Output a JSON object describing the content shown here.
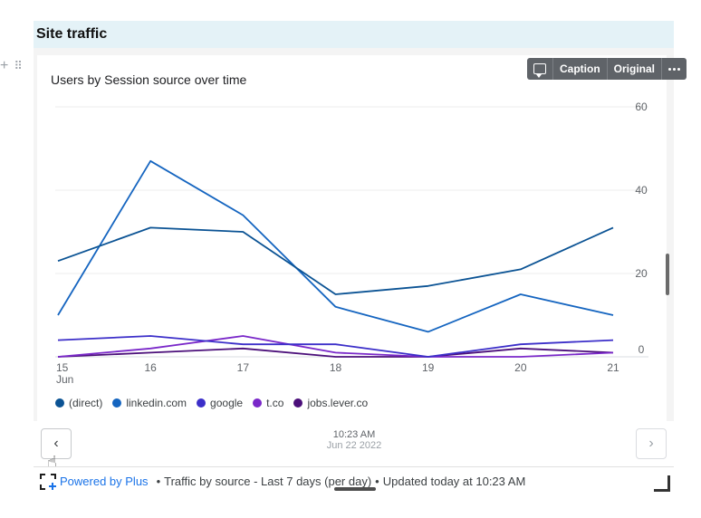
{
  "section": {
    "title": "Site traffic"
  },
  "toolbar": {
    "caption_label": "Caption",
    "original_label": "Original"
  },
  "timestamp": {
    "time": "10:23 AM",
    "date": "Jun 22 2022"
  },
  "footer": {
    "powered_by": "Powered by Plus",
    "separator": "•",
    "description": "Traffic by source - Last 7 days (per day)",
    "updated": "Updated today at 10:23 AM"
  },
  "colors": {
    "header_bg": "#e4f2f7",
    "toolbar_bg": "#5f6368",
    "link": "#1a73e8"
  },
  "icons": [
    "plus-icon",
    "drag-handle-icon",
    "comment-icon",
    "more-icon",
    "chevron-left-icon",
    "chevron-right-icon",
    "plus-logo-icon",
    "resize-handle-icon"
  ],
  "chart_data": {
    "type": "line",
    "title": "Users by Session source over time",
    "x": [
      "15",
      "16",
      "17",
      "18",
      "19",
      "20",
      "21"
    ],
    "x_sublabel": "Jun",
    "y_ticks": [
      0,
      20,
      40,
      60
    ],
    "ylim": [
      0,
      60
    ],
    "y_axis_position": "right",
    "grid": true,
    "legend_position": "bottom-left",
    "series": [
      {
        "name": "(direct)",
        "color": "#0b5394",
        "values": [
          23,
          31,
          30,
          15,
          17,
          21,
          31
        ]
      },
      {
        "name": "linkedin.com",
        "color": "#1565c0",
        "values": [
          10,
          47,
          34,
          12,
          6,
          15,
          10
        ]
      },
      {
        "name": "google",
        "color": "#3c2fc9",
        "values": [
          4,
          5,
          3,
          3,
          0,
          3,
          4
        ]
      },
      {
        "name": "t.co",
        "color": "#7a28c9",
        "values": [
          0,
          2,
          5,
          1,
          0,
          0,
          1
        ]
      },
      {
        "name": "jobs.lever.co",
        "color": "#4b0f7a",
        "values": [
          0,
          1,
          2,
          0,
          0,
          2,
          1
        ]
      }
    ]
  }
}
